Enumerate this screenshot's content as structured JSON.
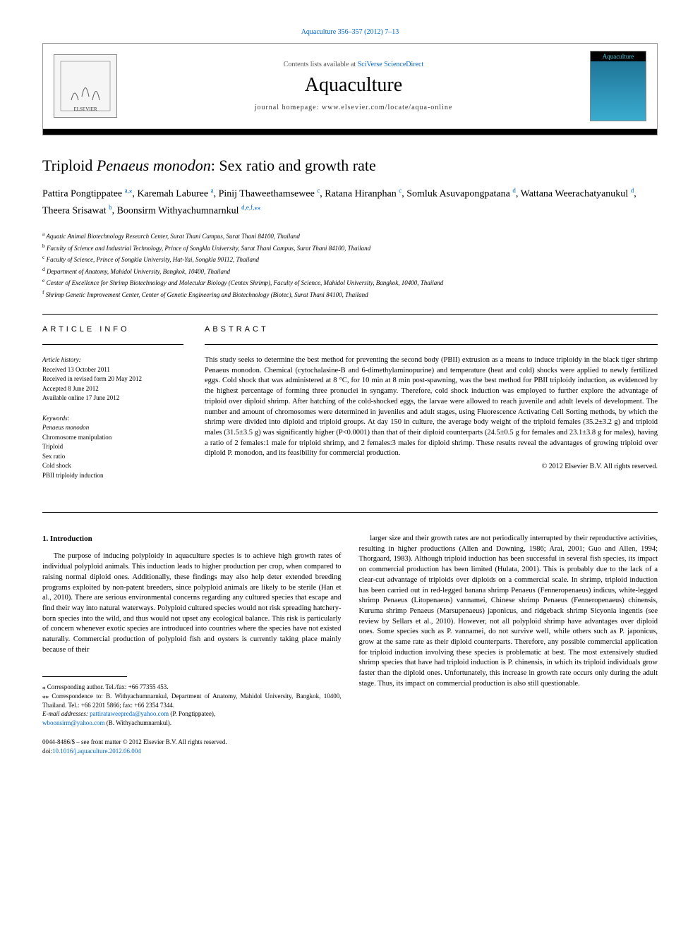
{
  "topLink": "Aquaculture 356–357 (2012) 7–13",
  "header": {
    "contentsText": "Contents lists available at ",
    "contentsLink": "SciVerse ScienceDirect",
    "journalName": "Aquaculture",
    "homepage": "journal homepage: www.elsevier.com/locate/aqua-online",
    "coverTitle": "Aquaculture"
  },
  "article": {
    "titlePrefix": "Triploid ",
    "titleItalic": "Penaeus monodon",
    "titleSuffix": ": Sex ratio and growth rate"
  },
  "authors": [
    {
      "name": "Pattira Pongtippatee ",
      "sup": "a,⁎"
    },
    {
      "name": ", Karemah Laburee ",
      "sup": "a"
    },
    {
      "name": ", Pinij Thaweethamsewee ",
      "sup": "c"
    },
    {
      "name": ", Ratana Hiranphan ",
      "sup": "c"
    },
    {
      "name": ", Somluk Asuvapongpatana ",
      "sup": "d"
    },
    {
      "name": ", Wattana Weerachatyanukul ",
      "sup": "d"
    },
    {
      "name": ", Theera Srisawat ",
      "sup": "b"
    },
    {
      "name": ", Boonsirm Withyachumnarnkul ",
      "sup": "d,e,f,⁎⁎"
    }
  ],
  "affiliations": [
    {
      "sup": "a",
      "text": " Aquatic Animal Biotechnology Research Center, Surat Thani Campus, Surat Thani 84100, Thailand"
    },
    {
      "sup": "b",
      "text": " Faculty of Science and Industrial Technology, Prince of Songkla University, Surat Thani Campus, Surat Thani 84100, Thailand"
    },
    {
      "sup": "c",
      "text": " Faculty of Science, Prince of Songkla University, Hat-Yai, Songkla 90112, Thailand"
    },
    {
      "sup": "d",
      "text": " Department of Anatomy, Mahidol University, Bangkok, 10400, Thailand"
    },
    {
      "sup": "e",
      "text": " Center of Excellence for Shrimp Biotechnology and Molecular Biology (Centex Shrimp), Faculty of Science, Mahidol University, Bangkok, 10400, Thailand"
    },
    {
      "sup": "f",
      "text": " Shrimp Genetic Improvement Center, Center of Genetic Engineering and Biotechnology (Biotec), Surat Thani 84100, Thailand"
    }
  ],
  "articleInfo": {
    "heading": "article info",
    "historyLabel": "Article history:",
    "history": [
      "Received 13 October 2011",
      "Received in revised form 20 May 2012",
      "Accepted 8 June 2012",
      "Available online 17 June 2012"
    ],
    "keywordsLabel": "Keywords:",
    "keywords": [
      "Penaeus monodon",
      "Chromosome manipulation",
      "Triploid",
      "Sex ratio",
      "Cold shock",
      "PBII triploidy induction"
    ]
  },
  "abstract": {
    "heading": "abstract",
    "text": "This study seeks to determine the best method for preventing the second body (PBII) extrusion as a means to induce triploidy in the black tiger shrimp Penaeus monodon. Chemical (cytochalasine-B and 6-dimethylaminopurine) and temperature (heat and cold) shocks were applied to newly fertilized eggs. Cold shock that was administered at 8 °C, for 10 min at 8 min post-spawning, was the best method for PBII triploidy induction, as evidenced by the highest percentage of forming three pronuclei in syngamy. Therefore, cold shock induction was employed to further explore the advantage of triploid over diploid shrimp. After hatching of the cold-shocked eggs, the larvae were allowed to reach juvenile and adult levels of development. The number and amount of chromosomes were determined in juveniles and adult stages, using Fluorescence Activating Cell Sorting methods, by which the shrimp were divided into diploid and triploid groups. At day 150 in culture, the average body weight of the triploid females (35.2±3.2 g) and triploid males (31.5±3.5 g) was significantly higher (P<0.0001) than that of their diploid counterparts (24.5±0.5 g for females and 23.1±3.8 g for males), having a ratio of 2 females:1 male for triploid shrimp, and 2 females:3 males for diploid shrimp. These results reveal the advantages of growing triploid over diploid P. monodon, and its feasibility for commercial production.",
    "copyright": "© 2012 Elsevier B.V. All rights reserved."
  },
  "body": {
    "sectionHeading": "1. Introduction",
    "leftCol": "The purpose of inducing polyploidy in aquaculture species is to achieve high growth rates of individual polyploid animals. This induction leads to higher production per crop, when compared to raising normal diploid ones. Additionally, these findings may also help deter extended breeding programs exploited by non-patent breeders, since polyploid animals are likely to be sterile (Han et al., 2010). There are serious environmental concerns regarding any cultured species that escape and find their way into natural waterways. Polyploid cultured species would not risk spreading hatchery-born species into the wild, and thus would not upset any ecological balance. This risk is particularly of concern whenever exotic species are introduced into countries where the species have not existed naturally. Commercial production of polyploid fish and oysters is currently taking place mainly because of their",
    "rightCol": "larger size and their growth rates are not periodically interrupted by their reproductive activities, resulting in higher productions (Allen and Downing, 1986; Arai, 2001; Guo and Allen, 1994; Thorgaard, 1983). Although triploid induction has been successful in several fish species, its impact on commercial production has been limited (Hulata, 2001). This is probably due to the lack of a clear-cut advantage of triploids over diploids on a commercial scale. In shrimp, triploid induction has been carried out in red-legged banana shrimp Penaeus (Fenneropenaeus) indicus, white-legged shrimp Penaeus (Litopenaeus) vannamei, Chinese shrimp Penaeus (Fenneropenaeus) chinensis, Kuruma shrimp Penaeus (Marsupenaeus) japonicus, and ridgeback shrimp Sicyonia ingentis (see review by Sellars et al., 2010). However, not all polyploid shrimp have advantages over diploid ones. Some species such as P. vannamei, do not survive well, while others such as P. japonicus, grow at the same rate as their diploid counterparts. Therefore, any possible commercial application for triploid induction involving these species is problematic at best. The most extensively studied shrimp species that have had triploid induction is P. chinensis, in which its triploid individuals grow faster than the diploid ones. Unfortunately, this increase in growth rate occurs only during the adult stage. Thus, its impact on commercial production is also still questionable."
  },
  "footnotes": {
    "corr1": "⁎ Corresponding author. Tel./fax: +66 77355 453.",
    "corr2": "⁎⁎ Correspondence to: B. Withyachumnarnkul, Department of Anatomy, Mahidol University, Bangkok, 10400, Thailand. Tel.: +66 2201 5866; fax: +66 2354 7344.",
    "emailLabel": "E-mail addresses: ",
    "email1": "pattirataweepreda@yahoo.com",
    "email1Name": " (P. Pongtippatee),",
    "email2": "wboonsirm@yahoo.com",
    "email2Name": " (B. Withyachumnarnkul)."
  },
  "doi": {
    "issn": "0044-8486/$ – see front matter © 2012 Elsevier B.V. All rights reserved.",
    "doiLabel": "doi:",
    "doi": "10.1016/j.aquaculture.2012.06.004"
  }
}
